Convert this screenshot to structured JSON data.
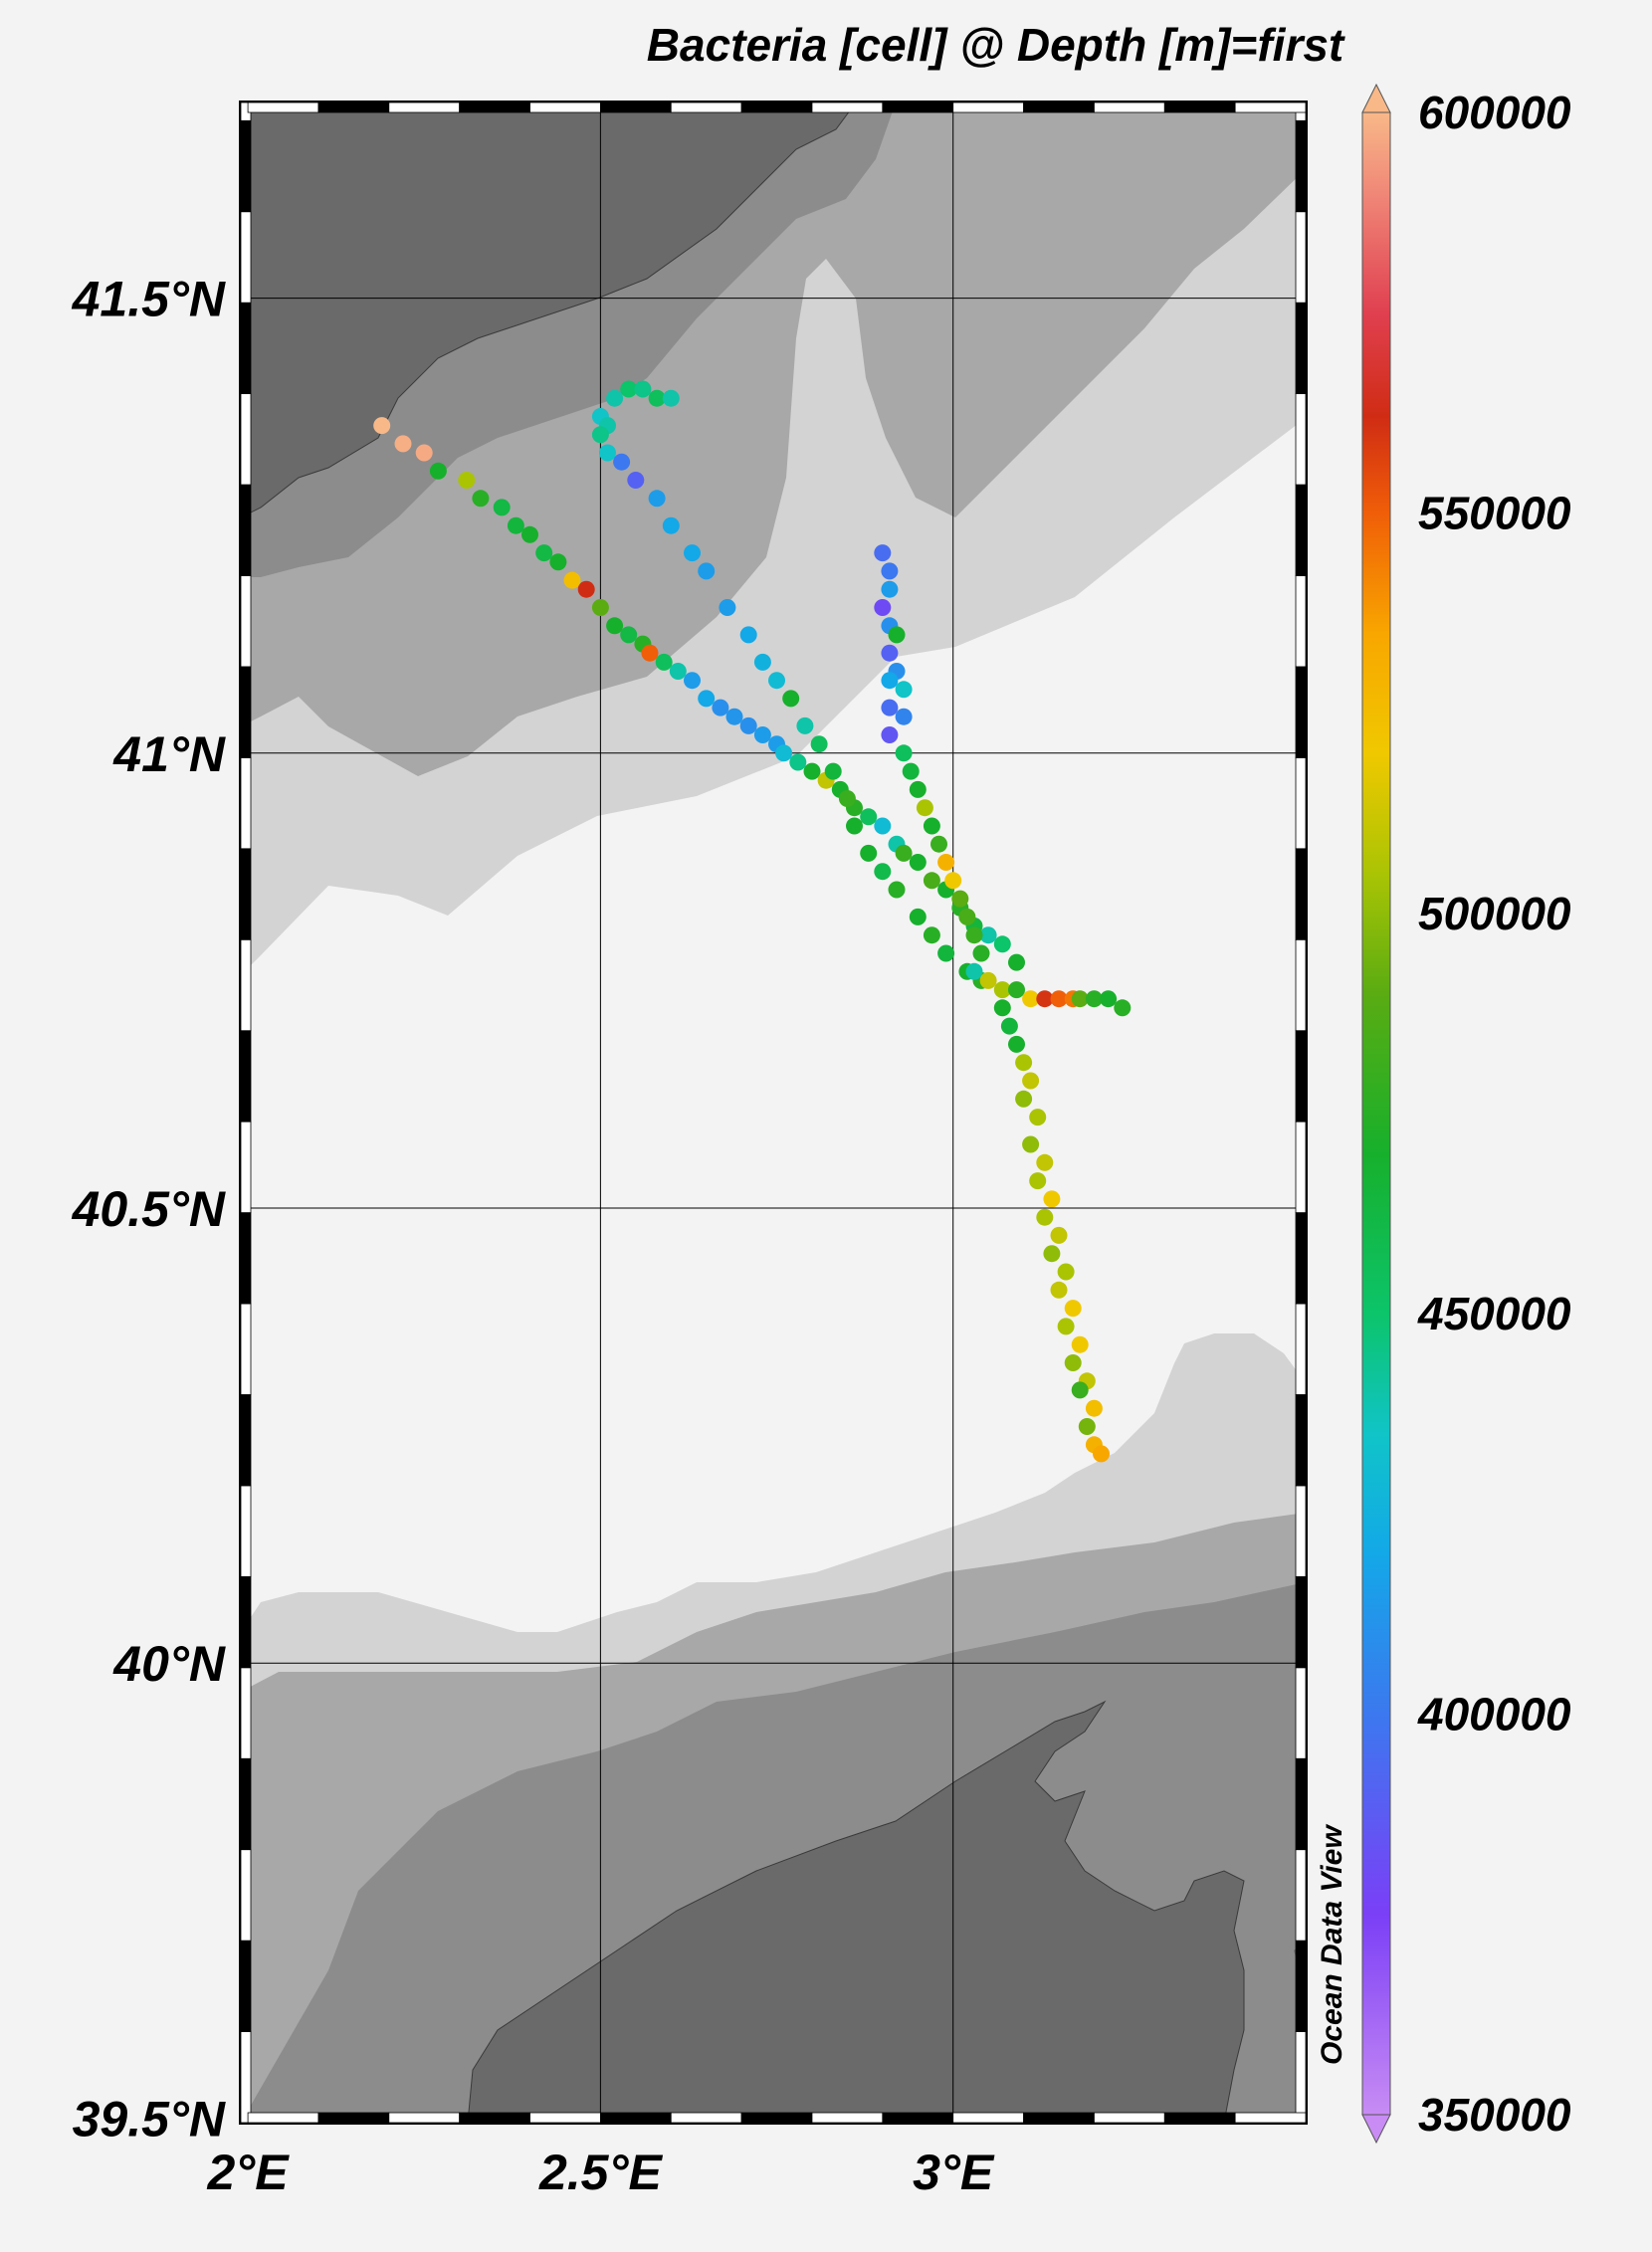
{
  "title": "Bacteria [cell] @ Depth [m]=first",
  "credit": "Ocean Data View",
  "map": {
    "lon_range": [
      1.99,
      3.5
    ],
    "lat_range": [
      39.495,
      41.715
    ],
    "lat_ticks": [
      {
        "value": 41.5,
        "label": "41.5°N"
      },
      {
        "value": 41.0,
        "label": "41°N"
      },
      {
        "value": 40.5,
        "label": "40.5°N"
      },
      {
        "value": 40.0,
        "label": "40°N"
      },
      {
        "value": 39.5,
        "label": "39.5°N"
      }
    ],
    "lon_ticks": [
      {
        "value": 2.0,
        "label": "2°E"
      },
      {
        "value": 2.5,
        "label": "2.5°E"
      },
      {
        "value": 3.0,
        "label": "3°E"
      }
    ],
    "grid": true,
    "land_color": "#6a6a6a",
    "shelf_colors": [
      "#8c8c8c",
      "#a8a8a8",
      "#d3d3d3",
      "#f3f3f3"
    ]
  },
  "colorbar": {
    "min": 350000,
    "max": 600000,
    "labels": [
      {
        "value": 600000,
        "label": "600000"
      },
      {
        "value": 550000,
        "label": "550000"
      },
      {
        "value": 500000,
        "label": "500000"
      },
      {
        "value": 450000,
        "label": "450000"
      },
      {
        "value": 400000,
        "label": "400000"
      },
      {
        "value": 350000,
        "label": "350000"
      }
    ],
    "stops": [
      {
        "v": 350000,
        "c": "#c88cf4"
      },
      {
        "v": 375000,
        "c": "#7b3ff6"
      },
      {
        "v": 400000,
        "c": "#3c78ef"
      },
      {
        "v": 420000,
        "c": "#13a8e8"
      },
      {
        "v": 435000,
        "c": "#10c4c8"
      },
      {
        "v": 450000,
        "c": "#0cc46a"
      },
      {
        "v": 470000,
        "c": "#17b02c"
      },
      {
        "v": 490000,
        "c": "#5aac12"
      },
      {
        "v": 505000,
        "c": "#aac404"
      },
      {
        "v": 520000,
        "c": "#f0c800"
      },
      {
        "v": 535000,
        "c": "#f8a600"
      },
      {
        "v": 550000,
        "c": "#f05e08"
      },
      {
        "v": 562000,
        "c": "#d02c14"
      },
      {
        "v": 575000,
        "c": "#e04050"
      },
      {
        "v": 590000,
        "c": "#f08878"
      },
      {
        "v": 600000,
        "c": "#f8b888"
      }
    ]
  },
  "chart_data": {
    "type": "scatter",
    "x_variable": "Longitude (°E)",
    "y_variable": "Latitude (°N)",
    "color_variable": "Bacteria [cell]",
    "transects": [
      {
        "points": [
          [
            2.19,
            41.36,
            600000
          ],
          [
            2.22,
            41.34,
            598000
          ],
          [
            2.25,
            41.33,
            597000
          ],
          [
            2.27,
            41.31,
            470000
          ],
          [
            2.31,
            41.3,
            505000
          ],
          [
            2.33,
            41.28,
            475000
          ],
          [
            2.36,
            41.27,
            462000
          ],
          [
            2.38,
            41.25,
            465000
          ],
          [
            2.4,
            41.24,
            470000
          ],
          [
            2.42,
            41.22,
            462000
          ],
          [
            2.44,
            41.21,
            470000
          ],
          [
            2.46,
            41.19,
            525000
          ],
          [
            2.48,
            41.18,
            562000
          ],
          [
            2.5,
            41.16,
            490000
          ],
          [
            2.52,
            41.14,
            470000
          ],
          [
            2.54,
            41.13,
            462000
          ],
          [
            2.56,
            41.12,
            475000
          ],
          [
            2.57,
            41.11,
            550000
          ],
          [
            2.59,
            41.1,
            455000
          ],
          [
            2.61,
            41.09,
            440000
          ],
          [
            2.63,
            41.08,
            415000
          ],
          [
            2.65,
            41.06,
            420000
          ],
          [
            2.67,
            41.05,
            410000
          ],
          [
            2.69,
            41.04,
            412000
          ],
          [
            2.71,
            41.03,
            410000
          ],
          [
            2.73,
            41.02,
            415000
          ],
          [
            2.75,
            41.01,
            415000
          ],
          [
            2.76,
            41.0,
            430000
          ],
          [
            2.78,
            40.99,
            445000
          ],
          [
            2.8,
            40.98,
            470000
          ],
          [
            2.82,
            40.97,
            510000
          ],
          [
            2.84,
            40.96,
            470000
          ],
          [
            2.86,
            40.94,
            475000
          ],
          [
            2.88,
            40.93,
            455000
          ],
          [
            2.9,
            40.92,
            430000
          ],
          [
            2.92,
            40.9,
            440000
          ],
          [
            2.93,
            40.89,
            480000
          ],
          [
            2.95,
            40.88,
            470000
          ],
          [
            2.97,
            40.86,
            485000
          ],
          [
            2.99,
            40.85,
            470000
          ],
          [
            3.01,
            40.83,
            475000
          ],
          [
            3.03,
            40.81,
            465000
          ],
          [
            3.05,
            40.8,
            440000
          ],
          [
            3.07,
            40.79,
            450000
          ],
          [
            3.09,
            40.77,
            470000
          ]
        ]
      },
      {
        "points": [
          [
            2.5,
            41.37,
            435000
          ],
          [
            2.52,
            41.39,
            440000
          ],
          [
            2.54,
            41.4,
            450000
          ],
          [
            2.56,
            41.4,
            445000
          ],
          [
            2.58,
            41.39,
            455000
          ],
          [
            2.6,
            41.39,
            440000
          ],
          [
            2.51,
            41.36,
            440000
          ],
          [
            2.5,
            41.35,
            445000
          ],
          [
            2.51,
            41.33,
            435000
          ],
          [
            2.53,
            41.32,
            400000
          ],
          [
            2.55,
            41.3,
            390000
          ],
          [
            2.58,
            41.28,
            415000
          ],
          [
            2.6,
            41.25,
            420000
          ],
          [
            2.63,
            41.22,
            420000
          ],
          [
            2.65,
            41.2,
            415000
          ],
          [
            2.68,
            41.16,
            415000
          ],
          [
            2.71,
            41.13,
            420000
          ],
          [
            2.73,
            41.1,
            425000
          ],
          [
            2.75,
            41.08,
            430000
          ],
          [
            2.77,
            41.06,
            470000
          ],
          [
            2.79,
            41.03,
            440000
          ],
          [
            2.81,
            41.01,
            455000
          ],
          [
            2.83,
            40.98,
            465000
          ],
          [
            2.85,
            40.95,
            480000
          ],
          [
            2.86,
            40.92,
            470000
          ],
          [
            2.88,
            40.89,
            470000
          ],
          [
            2.9,
            40.87,
            460000
          ],
          [
            2.92,
            40.85,
            475000
          ],
          [
            2.95,
            40.82,
            470000
          ],
          [
            2.97,
            40.8,
            475000
          ],
          [
            2.99,
            40.78,
            465000
          ],
          [
            3.02,
            40.76,
            470000
          ],
          [
            3.04,
            40.75,
            475000
          ]
        ]
      },
      {
        "points": [
          [
            2.9,
            41.22,
            395000
          ],
          [
            2.91,
            41.2,
            400000
          ],
          [
            2.91,
            41.18,
            415000
          ],
          [
            2.9,
            41.16,
            380000
          ],
          [
            2.91,
            41.14,
            410000
          ],
          [
            2.92,
            41.13,
            470000
          ],
          [
            2.91,
            41.11,
            390000
          ],
          [
            2.92,
            41.09,
            410000
          ],
          [
            2.91,
            41.08,
            420000
          ],
          [
            2.93,
            41.07,
            435000
          ],
          [
            2.91,
            41.05,
            395000
          ],
          [
            2.93,
            41.04,
            405000
          ],
          [
            2.91,
            41.02,
            385000
          ],
          [
            2.93,
            41.0,
            455000
          ],
          [
            2.94,
            40.98,
            465000
          ],
          [
            2.95,
            40.96,
            470000
          ],
          [
            2.96,
            40.94,
            505000
          ],
          [
            2.97,
            40.92,
            470000
          ],
          [
            2.98,
            40.9,
            480000
          ],
          [
            2.99,
            40.88,
            530000
          ],
          [
            3.0,
            40.86,
            520000
          ],
          [
            3.01,
            40.84,
            490000
          ],
          [
            3.02,
            40.82,
            485000
          ],
          [
            3.03,
            40.8,
            480000
          ],
          [
            3.04,
            40.78,
            475000
          ]
        ]
      },
      {
        "points": [
          [
            3.03,
            40.76,
            440000
          ],
          [
            3.05,
            40.75,
            510000
          ],
          [
            3.07,
            40.74,
            505000
          ],
          [
            3.09,
            40.74,
            475000
          ],
          [
            3.11,
            40.73,
            520000
          ],
          [
            3.13,
            40.73,
            560000
          ],
          [
            3.15,
            40.73,
            550000
          ],
          [
            3.17,
            40.73,
            545000
          ],
          [
            3.18,
            40.73,
            490000
          ],
          [
            3.2,
            40.73,
            475000
          ],
          [
            3.22,
            40.73,
            470000
          ],
          [
            3.24,
            40.72,
            475000
          ]
        ]
      },
      {
        "points": [
          [
            3.07,
            40.72,
            470000
          ],
          [
            3.08,
            40.7,
            465000
          ],
          [
            3.09,
            40.68,
            470000
          ],
          [
            3.1,
            40.66,
            505000
          ],
          [
            3.11,
            40.64,
            510000
          ],
          [
            3.1,
            40.62,
            500000
          ],
          [
            3.12,
            40.6,
            505000
          ],
          [
            3.11,
            40.57,
            500000
          ],
          [
            3.13,
            40.55,
            510000
          ],
          [
            3.12,
            40.53,
            505000
          ],
          [
            3.14,
            40.51,
            520000
          ],
          [
            3.13,
            40.49,
            505000
          ],
          [
            3.15,
            40.47,
            510000
          ],
          [
            3.14,
            40.45,
            500000
          ],
          [
            3.16,
            40.43,
            505000
          ],
          [
            3.15,
            40.41,
            510000
          ],
          [
            3.17,
            40.39,
            520000
          ],
          [
            3.16,
            40.37,
            505000
          ],
          [
            3.18,
            40.35,
            520000
          ],
          [
            3.17,
            40.33,
            500000
          ],
          [
            3.19,
            40.31,
            510000
          ],
          [
            3.18,
            40.3,
            480000
          ],
          [
            3.2,
            40.28,
            525000
          ],
          [
            3.19,
            40.26,
            495000
          ],
          [
            3.2,
            40.24,
            530000
          ],
          [
            3.21,
            40.23,
            535000
          ]
        ]
      }
    ]
  }
}
